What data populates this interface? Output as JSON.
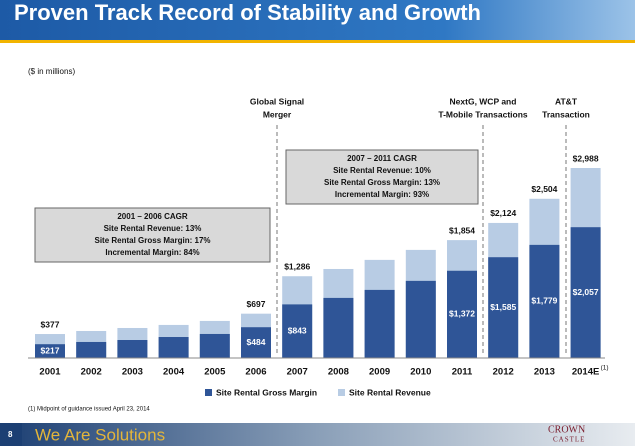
{
  "chart_data": {
    "type": "bar",
    "title": "Proven Track Record of Stability and Growth",
    "subtitle": "($ in millions)",
    "categories": [
      "2001",
      "2002",
      "2003",
      "2004",
      "2005",
      "2006",
      "2007",
      "2008",
      "2009",
      "2010",
      "2011",
      "2012",
      "2013",
      "2014E"
    ],
    "category_note": "(1)",
    "series": [
      {
        "name": "Site Rental Revenue",
        "color": "#b8cce4",
        "values": [
          377,
          425,
          472,
          520,
          583,
          697,
          1286,
          1400,
          1543,
          1700,
          1854,
          2124,
          2504,
          2988
        ],
        "value_labels": [
          "$377",
          null,
          null,
          null,
          null,
          "$697",
          "$1,286",
          null,
          null,
          null,
          "$1,854",
          "$2,124",
          "$2,504",
          "$2,988"
        ]
      },
      {
        "name": "Site Rental Gross Margin",
        "color": "#2f5597",
        "values": [
          217,
          252,
          283,
          330,
          378,
          484,
          843,
          945,
          1071,
          1213,
          1372,
          1585,
          1779,
          2057
        ],
        "value_labels": [
          "$217",
          null,
          null,
          null,
          null,
          "$484",
          "$843",
          null,
          null,
          null,
          "$1,372",
          "$1,585",
          "$1,779",
          "$2,057"
        ]
      }
    ],
    "legend": [
      "Site Rental Gross Margin",
      "Site Rental Revenue"
    ],
    "annotations": [
      {
        "lines": [
          "Global Signal",
          "Merger"
        ]
      },
      {
        "lines": [
          "NextG, WCP and",
          "T-Mobile Transactions"
        ]
      },
      {
        "lines": [
          "AT&T",
          "Transaction"
        ]
      }
    ],
    "boxes": [
      {
        "lines": [
          "2001 – 2006 CAGR",
          "Site Rental Revenue: 13%",
          "Site Rental Gross Margin: 17%",
          "Incremental Margin: 84%"
        ]
      },
      {
        "lines": [
          "2007 – 2011 CAGR",
          "Site Rental Revenue: 10%",
          "Site Rental Gross Margin: 13%",
          "Incremental Margin: 93%"
        ]
      }
    ]
  },
  "footer": {
    "footnote": "(1)    Midpoint of guidance issued April 23, 2014",
    "page": "8",
    "tagline": "We Are Solutions",
    "logo": [
      "CROWN",
      "CASTLE"
    ]
  }
}
